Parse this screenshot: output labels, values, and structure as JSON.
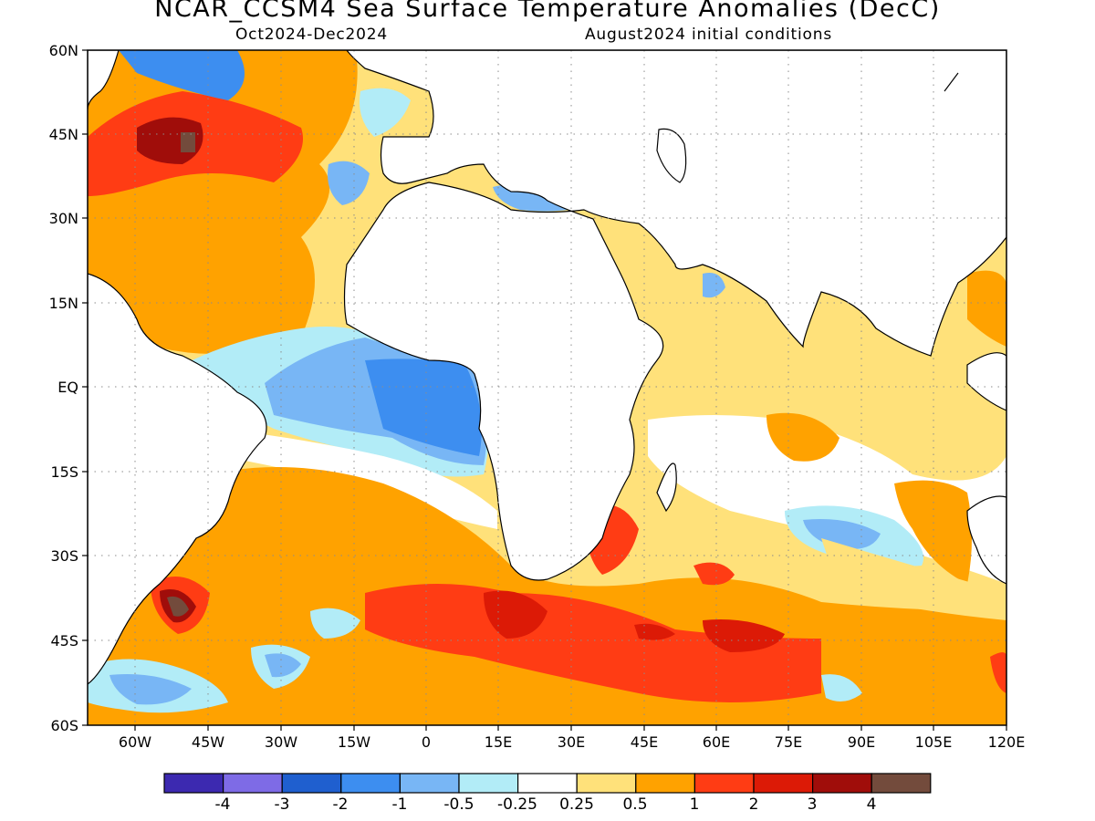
{
  "title": "NCAR_CCSM4 Sea Surface Temperature Anomalies (DecC)",
  "subtitle_left": "Oct2024-Dec2024",
  "subtitle_right": "August2024 initial conditions",
  "lat_ticks": [
    "60N",
    "45N",
    "30N",
    "15N",
    "EQ",
    "15S",
    "30S",
    "45S",
    "60S"
  ],
  "lon_ticks": [
    "60W",
    "45W",
    "30W",
    "15W",
    "0",
    "15E",
    "30E",
    "45E",
    "60E",
    "75E",
    "90E",
    "105E",
    "120E"
  ],
  "colorbar": {
    "labels": [
      "-4",
      "-3",
      "-2",
      "-1",
      "-0.5",
      "-0.25",
      "0.25",
      "0.5",
      "1",
      "2",
      "3",
      "4"
    ],
    "colors": [
      "#3c29b0",
      "#7e6be6",
      "#1f5fcf",
      "#3d8ef0",
      "#78b6f5",
      "#b2ecf7",
      "#ffffff",
      "#ffe17a",
      "#ffa200",
      "#ff3c14",
      "#dc1a06",
      "#a00d0a",
      "#734b3c"
    ]
  },
  "land_color": "#ffffff",
  "grid": "dotted"
}
